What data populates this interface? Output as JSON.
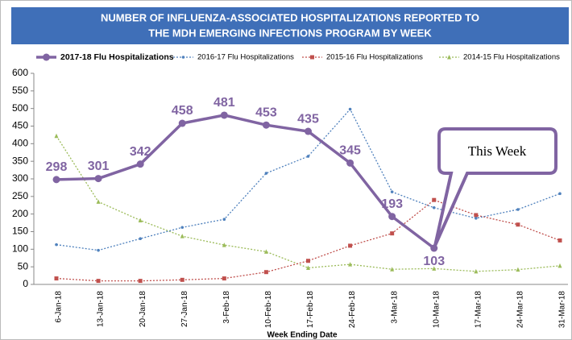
{
  "chart_data": {
    "type": "line",
    "title": [
      "NUMBER OF INFLUENZA-ASSOCIATED HOSPITALIZATIONS REPORTED TO",
      "THE MDH EMERGING INFECTIONS PROGRAM BY WEEK"
    ],
    "xlabel": "Week Ending Date",
    "categories": [
      "6-Jan-18",
      "13-Jan-18",
      "20-Jan-18",
      "27-Jan-18",
      "3-Feb-18",
      "10-Feb-18",
      "17-Feb-18",
      "24-Feb-18",
      "3-Mar-18",
      "10-Mar-18",
      "17-Mar-18",
      "24-Mar-18",
      "31-Mar-18"
    ],
    "series": [
      {
        "name": "2017-18 Flu Hospitalizations",
        "color": "#8064a2",
        "values": [
          298,
          301,
          342,
          458,
          481,
          453,
          435,
          345,
          193,
          103,
          null,
          null,
          null
        ]
      },
      {
        "name": "2016-17 Flu Hospitalizations",
        "color": "#4f81bd",
        "values": [
          113,
          97,
          130,
          162,
          185,
          316,
          364,
          498,
          263,
          218,
          188,
          213,
          258
        ]
      },
      {
        "name": "2015-16 Flu Hospitalizations",
        "color": "#c0504d",
        "values": [
          17,
          10,
          10,
          13,
          17,
          35,
          67,
          110,
          145,
          240,
          197,
          170,
          125
        ]
      },
      {
        "name": "2014-15 Flu Hospitalizations",
        "color": "#9bbb59",
        "values": [
          422,
          235,
          182,
          137,
          112,
          93,
          47,
          57,
          43,
          45,
          37,
          42,
          53
        ]
      }
    ],
    "ylim": [
      0,
      600
    ],
    "yticks": [
      0,
      50,
      100,
      150,
      200,
      250,
      300,
      350,
      400,
      450,
      500,
      550,
      600
    ],
    "annotation": "This Week"
  }
}
